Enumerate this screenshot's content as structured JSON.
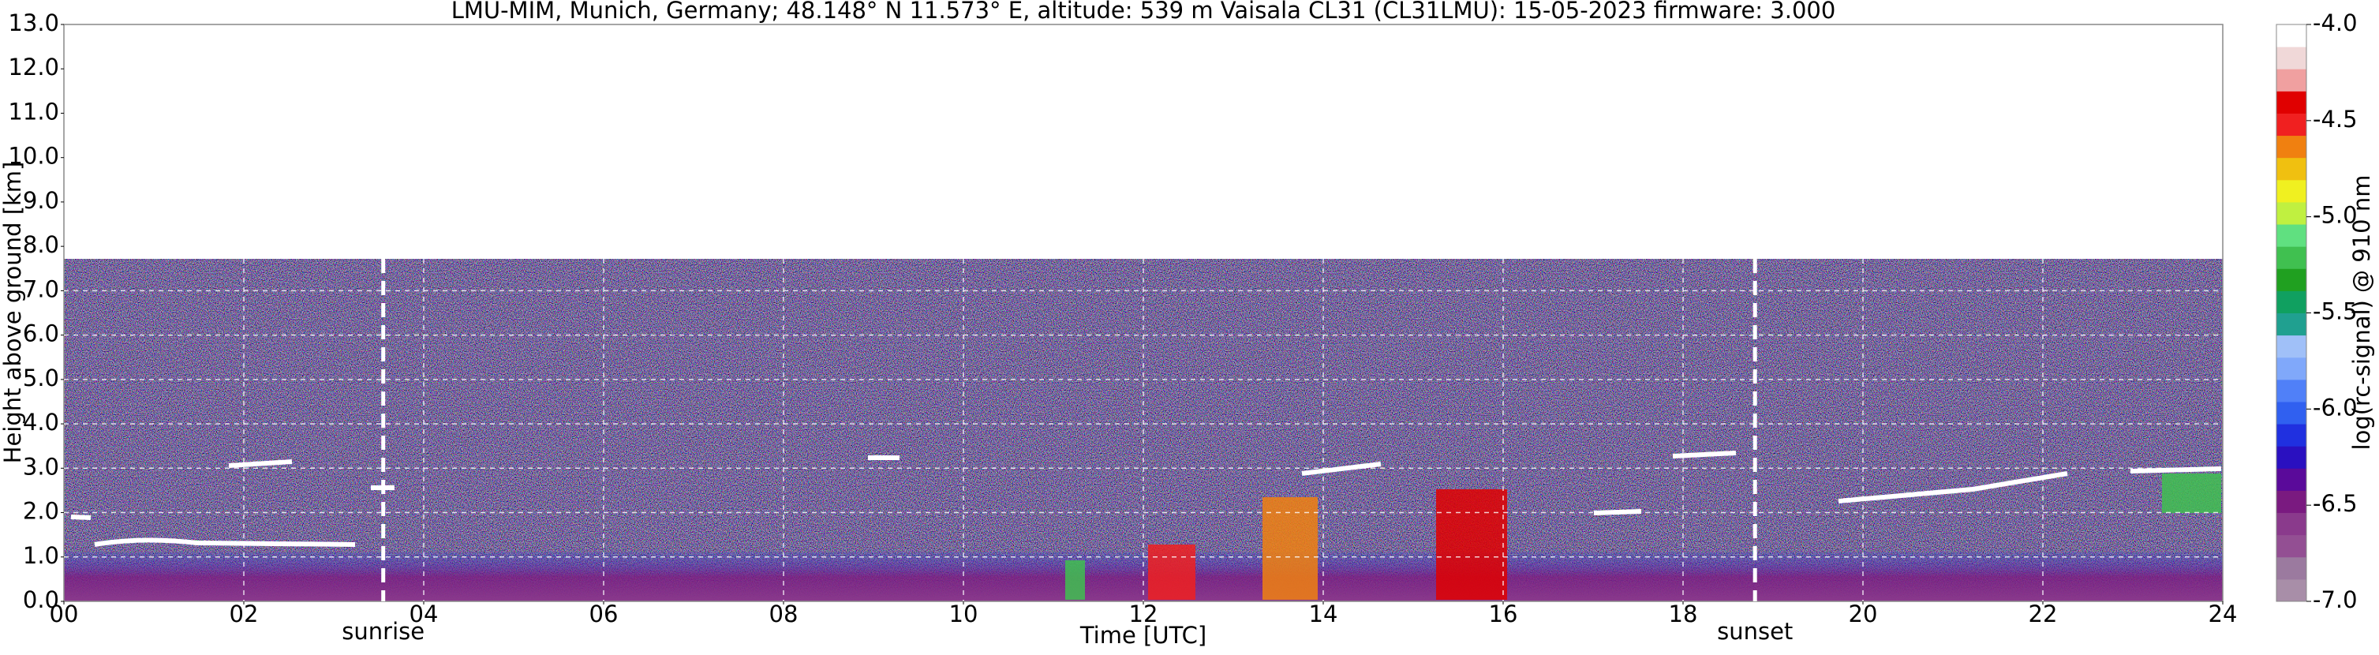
{
  "chart_data": {
    "type": "heatmap",
    "title": "LMU-MIM, Munich, Germany; 48.148° N 11.573° E, altitude: 539 m    Vaisala CL31 (CL31LMU): 15-05-2023    firmware: 3.000",
    "xlabel": "Time [UTC]",
    "ylabel": "Height above ground [km]",
    "xlim": [
      0,
      24
    ],
    "xticks": [
      {
        "value": 0,
        "label": "00"
      },
      {
        "value": 2,
        "label": "02"
      },
      {
        "value": 4,
        "label": "04"
      },
      {
        "value": 6,
        "label": "06"
      },
      {
        "value": 8,
        "label": "08"
      },
      {
        "value": 10,
        "label": "10"
      },
      {
        "value": 12,
        "label": "12"
      },
      {
        "value": 14,
        "label": "14"
      },
      {
        "value": 16,
        "label": "16"
      },
      {
        "value": 18,
        "label": "18"
      },
      {
        "value": 20,
        "label": "20"
      },
      {
        "value": 22,
        "label": "22"
      },
      {
        "value": 24,
        "label": "24"
      }
    ],
    "ylim": [
      0,
      13
    ],
    "yticks": [
      {
        "value": 0,
        "label": "0.0"
      },
      {
        "value": 1,
        "label": "1.0"
      },
      {
        "value": 2,
        "label": "2.0"
      },
      {
        "value": 3,
        "label": "3.0"
      },
      {
        "value": 4,
        "label": "4.0"
      },
      {
        "value": 5,
        "label": "5.0"
      },
      {
        "value": 6,
        "label": "6.0"
      },
      {
        "value": 7,
        "label": "7.0"
      },
      {
        "value": 8,
        "label": "8.0"
      },
      {
        "value": 9,
        "label": "9.0"
      },
      {
        "value": 10,
        "label": "10.0"
      },
      {
        "value": 11,
        "label": "11.0"
      },
      {
        "value": 12,
        "label": "12.0"
      },
      {
        "value": 13,
        "label": "13.0"
      }
    ],
    "grid": true,
    "annotations": [
      {
        "text": "sunrise",
        "x": 3.55
      },
      {
        "text": "sunset",
        "x": 18.8
      }
    ],
    "colorbar": {
      "label": "log(rc-signal) @ 910 nm",
      "lim": [
        -7,
        -4
      ],
      "ticks": [
        {
          "value": -4,
          "label": "-4.0"
        },
        {
          "value": -4.5,
          "label": "-4.5"
        },
        {
          "value": -5,
          "label": "-5.0"
        },
        {
          "value": -5.5,
          "label": "-5.5"
        },
        {
          "value": -6,
          "label": "-6.0"
        },
        {
          "value": -6.5,
          "label": "-6.5"
        },
        {
          "value": -7,
          "label": "-7.0"
        }
      ],
      "colors": [
        "#a88ea8",
        "#9b7a9f",
        "#934f93",
        "#8a3a8c",
        "#7a1a80",
        "#5a0a9a",
        "#2a10c0",
        "#2030e0",
        "#3060f0",
        "#5080f8",
        "#80a8fa",
        "#a0c0f8",
        "#20a090",
        "#10a060",
        "#20a020",
        "#40c050",
        "#60e080",
        "#c0f040",
        "#f0f020",
        "#f0c010",
        "#f08010",
        "#f02020",
        "#e00000",
        "#f0a0a0",
        "#f0d8d8",
        "#ffffff"
      ]
    }
  }
}
